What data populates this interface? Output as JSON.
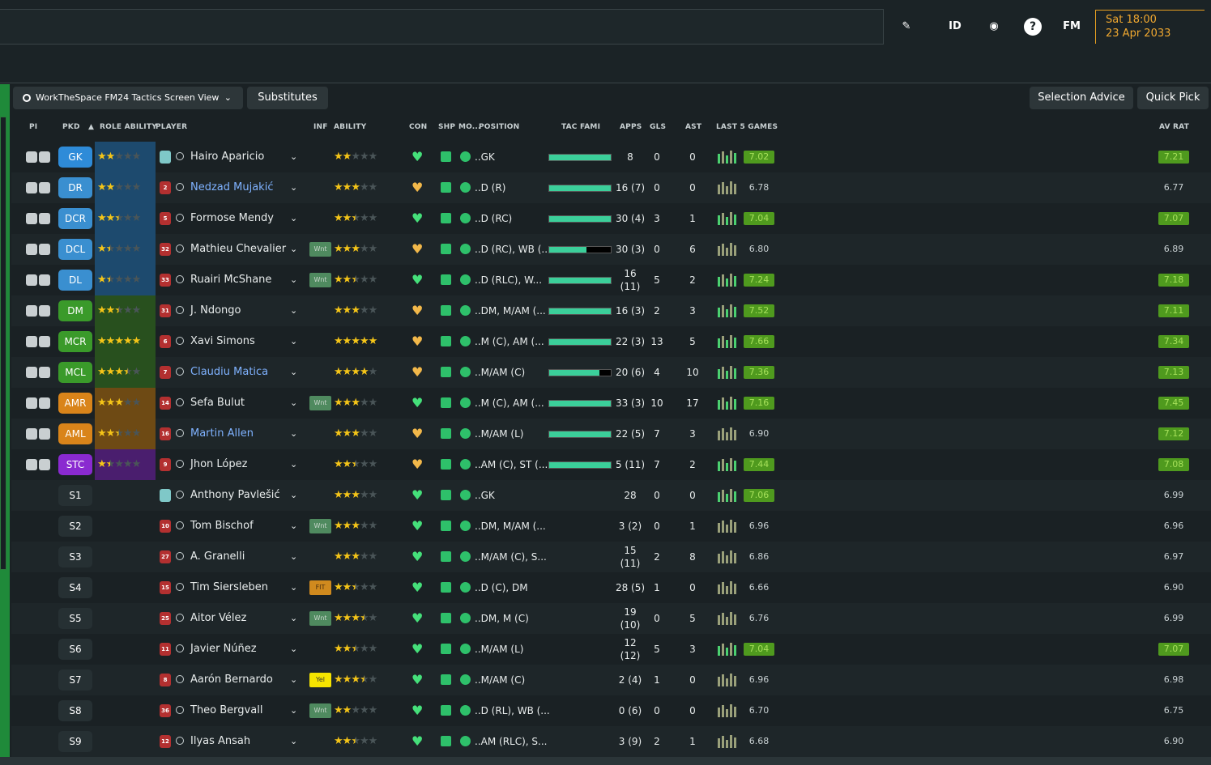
{
  "topbar": {
    "icons": [
      "pencil-icon",
      "id-icon",
      "globe-icon",
      "help-icon",
      "fm-icon"
    ],
    "id_label": "ID",
    "help_label": "?",
    "fm_label": "FM",
    "day_time": "Sat 18:00",
    "date": "23 Apr 2033"
  },
  "toolbar": {
    "view_label": "WorkTheSpace FM24 Tactics Screen View",
    "subs_label": "Substitutes",
    "advice_label": "Selection Advice",
    "quick_label": "Quick Pick"
  },
  "headers": {
    "pi": "PI",
    "pkd": "PKD",
    "role_ability": "ROLE ABILITY",
    "player": "PLAYER",
    "inf": "INF",
    "ability": "ABILITY",
    "con": "CON",
    "shp": "SHP",
    "mo": "MO...",
    "position": "POSITION",
    "tac": "TAC FAMI",
    "apps": "APPS",
    "gls": "GLS",
    "ast": "AST",
    "last5": "LAST 5 GAMES",
    "avrat": "AV RAT"
  },
  "colors": {
    "gk": "#2e8bd8",
    "def": "#3a8fd0",
    "mid": "#3a9a2a",
    "att": "#d9841a",
    "st": "#8a2ad0",
    "accent_green": "#2ec06a",
    "date_orange": "#f0a830"
  },
  "rows": [
    {
      "pos": "GK",
      "name": "Hairo Aparicio",
      "num": "",
      "role": 2,
      "ab": 2,
      "inf": "",
      "pos_txt": "..GK",
      "tac": 1,
      "apps": "8",
      "gls": "0",
      "ast": "0",
      "form": "7.02",
      "av": "7.21",
      "link": false
    },
    {
      "pos": "DR",
      "name": "Nedzad Mujakić",
      "num": "2",
      "role": 2,
      "ab": 3,
      "inf": "",
      "pos_txt": "..D (R)",
      "tac": 1,
      "apps": "16 (7)",
      "gls": "0",
      "ast": "0",
      "form": "6.78",
      "av": "6.77",
      "link": true
    },
    {
      "pos": "DCR",
      "name": "Formose Mendy",
      "num": "5",
      "role": 2.5,
      "ab": 2.5,
      "inf": "",
      "pos_txt": "..D (RC)",
      "tac": 1,
      "apps": "30 (4)",
      "gls": "3",
      "ast": "1",
      "form": "7.04",
      "av": "7.07",
      "link": false
    },
    {
      "pos": "DCL",
      "name": "Mathieu Chevalier",
      "num": "32",
      "role": 1.5,
      "ab": 3,
      "inf": "Wnt",
      "pos_txt": "..D (RC), WB (...",
      "tac": 0.6,
      "apps": "30 (3)",
      "gls": "0",
      "ast": "6",
      "form": "6.80",
      "av": "6.89",
      "link": false
    },
    {
      "pos": "DL",
      "name": "Ruairi McShane",
      "num": "33",
      "role": 1.5,
      "ab": 2.5,
      "inf": "Wnt",
      "pos_txt": "..D (RLC), W...",
      "tac": 1,
      "apps": "16 (11)",
      "gls": "5",
      "ast": "2",
      "form": "7.24",
      "av": "7.18",
      "link": false
    },
    {
      "pos": "DM",
      "name": "J. Ndongo",
      "num": "31",
      "role": 2.5,
      "ab": 3,
      "inf": "",
      "pos_txt": "..DM, M/AM (...",
      "tac": 1,
      "apps": "16 (3)",
      "gls": "2",
      "ast": "3",
      "form": "7.52",
      "av": "7.11",
      "link": false
    },
    {
      "pos": "MCR",
      "name": "Xavi Simons",
      "num": "6",
      "role": 5,
      "ab": 5,
      "inf": "",
      "pos_txt": "..M (C), AM (...",
      "tac": 1,
      "apps": "22 (3)",
      "gls": "13",
      "ast": "5",
      "form": "7.66",
      "av": "7.34",
      "link": false
    },
    {
      "pos": "MCL",
      "name": "Claudiu Matica",
      "num": "7",
      "role": 3.5,
      "ab": 4,
      "inf": "",
      "pos_txt": "..M/AM (C)",
      "tac": 0.82,
      "apps": "20 (6)",
      "gls": "4",
      "ast": "10",
      "form": "7.36",
      "av": "7.13",
      "link": true
    },
    {
      "pos": "AMR",
      "name": "Sefa Bulut",
      "num": "14",
      "role": 3,
      "ab": 3,
      "inf": "Wnt",
      "pos_txt": "..M (C), AM (...",
      "tac": 1,
      "apps": "33 (3)",
      "gls": "10",
      "ast": "17",
      "form": "7.16",
      "av": "7.45",
      "link": false
    },
    {
      "pos": "AML",
      "name": "Martin Allen",
      "num": "16",
      "role": 2.5,
      "ab": 3,
      "inf": "",
      "pos_txt": "..M/AM (L)",
      "tac": 1,
      "apps": "22 (5)",
      "gls": "7",
      "ast": "3",
      "form": "6.90",
      "av": "7.12",
      "link": true
    },
    {
      "pos": "STC",
      "name": "Jhon López",
      "num": "9",
      "role": 1.5,
      "ab": 2.5,
      "inf": "",
      "pos_txt": "..AM (C), ST (...",
      "tac": 1,
      "apps": "5 (11)",
      "gls": "7",
      "ast": "2",
      "form": "7.44",
      "av": "7.08",
      "link": false
    },
    {
      "pos": "S1",
      "name": "Anthony Pavlešić",
      "num": "",
      "role": 0,
      "ab": 3,
      "inf": "",
      "pos_txt": "..GK",
      "tac": -1,
      "apps": "28",
      "gls": "0",
      "ast": "0",
      "form": "7.06",
      "av": "6.99",
      "link": false
    },
    {
      "pos": "S2",
      "name": "Tom Bischof",
      "num": "10",
      "role": 0,
      "ab": 3,
      "inf": "Wnt",
      "pos_txt": "..DM, M/AM (...",
      "tac": -1,
      "apps": "3 (2)",
      "gls": "0",
      "ast": "1",
      "form": "6.96",
      "av": "6.96",
      "link": false
    },
    {
      "pos": "S3",
      "name": "A. Granelli",
      "num": "27",
      "role": 0,
      "ab": 3,
      "inf": "",
      "pos_txt": "..M/AM (C), S...",
      "tac": -1,
      "apps": "15 (11)",
      "gls": "2",
      "ast": "8",
      "form": "6.86",
      "av": "6.97",
      "link": false
    },
    {
      "pos": "S4",
      "name": "Tim Siersleben",
      "num": "15",
      "role": 0,
      "ab": 2.5,
      "inf": "FIT",
      "pos_txt": "..D (C), DM",
      "tac": -1,
      "apps": "28 (5)",
      "gls": "1",
      "ast": "0",
      "form": "6.66",
      "av": "6.90",
      "link": false
    },
    {
      "pos": "S5",
      "name": "Aitor Vélez",
      "num": "25",
      "role": 0,
      "ab": 3.5,
      "inf": "Wnt",
      "pos_txt": "..DM, M (C)",
      "tac": -1,
      "apps": "19 (10)",
      "gls": "0",
      "ast": "5",
      "form": "6.76",
      "av": "6.99",
      "link": false
    },
    {
      "pos": "S6",
      "name": "Javier Núñez",
      "num": "11",
      "role": 0,
      "ab": 2.5,
      "inf": "",
      "pos_txt": "..M/AM (L)",
      "tac": -1,
      "apps": "12 (12)",
      "gls": "5",
      "ast": "3",
      "form": "7.04",
      "av": "7.07",
      "link": false
    },
    {
      "pos": "S7",
      "name": "Aarón Bernardo",
      "num": "8",
      "role": 0,
      "ab": 3.5,
      "inf": "Yel",
      "pos_txt": "..M/AM (C)",
      "tac": -1,
      "apps": "2 (4)",
      "gls": "1",
      "ast": "0",
      "form": "6.96",
      "av": "6.98",
      "link": false
    },
    {
      "pos": "S8",
      "name": "Theo Bergvall",
      "num": "36",
      "role": 0,
      "ab": 2,
      "inf": "Wnt",
      "pos_txt": "..D (RL), WB (...",
      "tac": -1,
      "apps": "0 (6)",
      "gls": "0",
      "ast": "0",
      "form": "6.70",
      "av": "6.75",
      "link": false
    },
    {
      "pos": "S9",
      "name": "Ilyas Ansah",
      "num": "12",
      "role": 0,
      "ab": 2.5,
      "inf": "",
      "pos_txt": "..AM (RLC), S...",
      "tac": -1,
      "apps": "3 (9)",
      "gls": "2",
      "ast": "1",
      "form": "6.68",
      "av": "6.90",
      "link": false
    }
  ]
}
